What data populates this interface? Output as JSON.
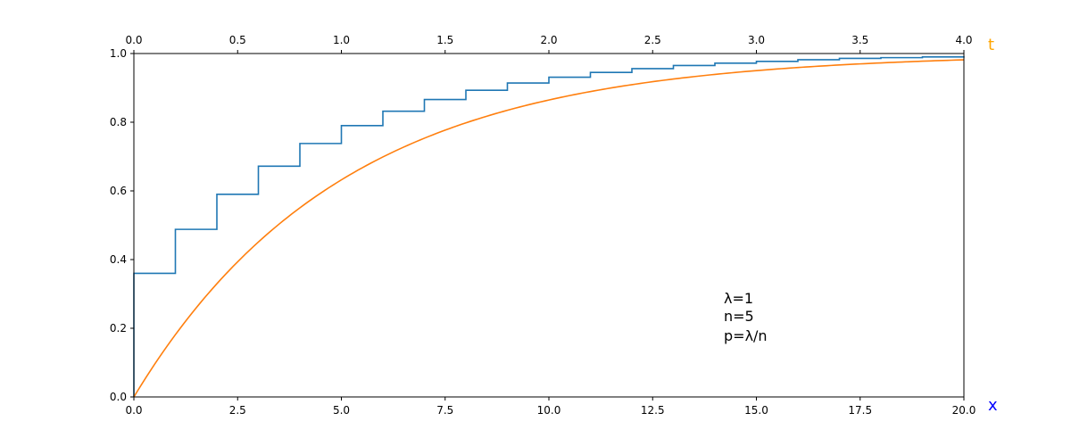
{
  "chart_data": {
    "type": "line",
    "xlabel": "x",
    "x2label": "t",
    "xlim": [
      0,
      20
    ],
    "x2lim": [
      0,
      4
    ],
    "ylim": [
      0,
      1
    ],
    "grid": false,
    "xticks": [
      0,
      2.5,
      5,
      7.5,
      10,
      12.5,
      15,
      17.5,
      20
    ],
    "xtick_labels": [
      "0.0",
      "2.5",
      "5.0",
      "7.5",
      "10.0",
      "12.5",
      "15.0",
      "17.5",
      "20.0"
    ],
    "x2ticks": [
      0,
      0.5,
      1,
      1.5,
      2,
      2.5,
      3,
      3.5,
      4
    ],
    "x2tick_labels": [
      "0.0",
      "0.5",
      "1.0",
      "1.5",
      "2.0",
      "2.5",
      "3.0",
      "3.5",
      "4.0"
    ],
    "yticks": [
      0,
      0.2,
      0.4,
      0.6,
      0.8,
      1.0
    ],
    "ytick_labels": [
      "0.0",
      "0.2",
      "0.4",
      "0.6",
      "0.8",
      "1.0"
    ],
    "annotations": [
      "λ=1",
      "n=5",
      "p=λ/n"
    ],
    "colors": {
      "series1": "#1f77b4",
      "series2": "#ff7f0e",
      "xlabel": "#0000ff",
      "x2label": "#ffa500",
      "axis": "#000000"
    },
    "series": [
      {
        "style": "step",
        "x": [
          0,
          1,
          2,
          3,
          4,
          5,
          6,
          7,
          8,
          9,
          10,
          11,
          12,
          13,
          14,
          15,
          16,
          17,
          18,
          19,
          20
        ],
        "values": [
          0.36,
          0.488,
          0.59,
          0.672,
          0.738,
          0.79,
          0.832,
          0.866,
          0.893,
          0.914,
          0.931,
          0.945,
          0.956,
          0.965,
          0.972,
          0.977,
          0.982,
          0.986,
          0.988,
          0.99,
          0.992
        ]
      },
      {
        "style": "line",
        "formula": "1 - exp(-x/5)",
        "x": [
          0,
          1,
          2,
          3,
          4,
          5,
          6,
          7,
          8,
          9,
          10,
          11,
          12,
          13,
          14,
          15,
          16,
          17,
          18,
          19,
          20
        ],
        "values": [
          0,
          0.181,
          0.33,
          0.451,
          0.551,
          0.632,
          0.699,
          0.753,
          0.798,
          0.835,
          0.865,
          0.889,
          0.909,
          0.926,
          0.939,
          0.95,
          0.959,
          0.967,
          0.973,
          0.978,
          0.982
        ]
      }
    ]
  }
}
